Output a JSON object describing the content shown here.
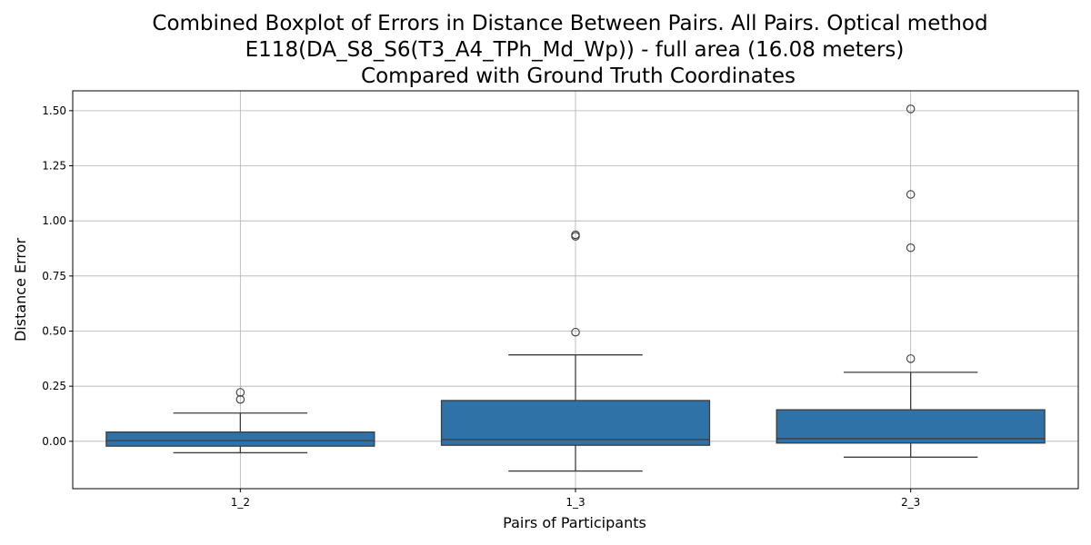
{
  "chart_data": {
    "type": "box",
    "title_lines": [
      "Combined Boxplot of Errors in Distance Between Pairs. All Pairs. Optical method",
      "E118(DA_S8_S6(T3_A4_TPh_Md_Wp)) - full area (16.08 meters)",
      "Compared with Ground Truth Coordinates"
    ],
    "xlabel": "Pairs of Participants",
    "ylabel": "Distance Error",
    "ylim": [
      -0.215,
      1.59
    ],
    "yticks": [
      0.0,
      0.25,
      0.5,
      0.75,
      1.0,
      1.25,
      1.5
    ],
    "ytick_labels": [
      "0.00",
      "0.25",
      "0.50",
      "0.75",
      "1.00",
      "1.25",
      "1.50"
    ],
    "grid": true,
    "box_color": "#2e72a8",
    "categories": [
      "1_2",
      "1_3",
      "2_3"
    ],
    "boxes": [
      {
        "category": "1_2",
        "whisker_low": -0.052,
        "q1": -0.022,
        "median": 0.003,
        "q3": 0.042,
        "whisker_high": 0.128,
        "outliers": [
          0.19,
          0.222
        ]
      },
      {
        "category": "1_3",
        "whisker_low": -0.135,
        "q1": -0.018,
        "median": 0.008,
        "q3": 0.185,
        "whisker_high": 0.392,
        "outliers": [
          0.495,
          0.93,
          0.937
        ]
      },
      {
        "category": "2_3",
        "whisker_low": -0.072,
        "q1": -0.008,
        "median": 0.012,
        "q3": 0.143,
        "whisker_high": 0.313,
        "outliers": [
          0.375,
          0.878,
          1.12,
          1.508
        ]
      }
    ]
  }
}
